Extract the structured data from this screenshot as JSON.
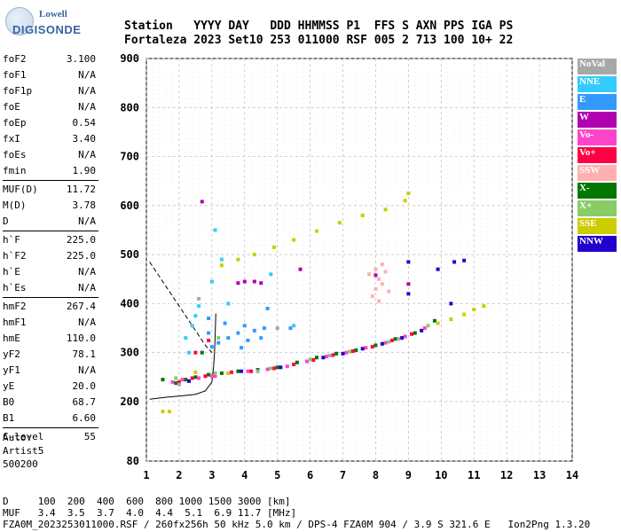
{
  "logo": {
    "line1": "Lowell",
    "line2": "DIGISONDE"
  },
  "header": {
    "line1": "Station   YYYY DAY   DDD HHMMSS P1  FFS S AXN PPS IGA PS",
    "line2": "Fortaleza 2023 Set10 253 011000 RSF 005 2 713 100 10+ 22"
  },
  "params_group1": [
    {
      "k": "foF2",
      "v": "3.100"
    },
    {
      "k": "foF1",
      "v": "N/A"
    },
    {
      "k": "foF1p",
      "v": "N/A"
    },
    {
      "k": "foE",
      "v": "N/A"
    },
    {
      "k": "foEp",
      "v": "0.54"
    },
    {
      "k": "fxI",
      "v": "3.40"
    },
    {
      "k": "foEs",
      "v": "N/A"
    },
    {
      "k": "fmin",
      "v": "1.90"
    }
  ],
  "params_group2": [
    {
      "k": "MUF(D)",
      "v": "11.72"
    },
    {
      "k": "M(D)",
      "v": "3.78"
    },
    {
      "k": "D",
      "v": "N/A"
    }
  ],
  "params_group3": [
    {
      "k": "h`F",
      "v": "225.0"
    },
    {
      "k": "h`F2",
      "v": "225.0"
    },
    {
      "k": "h`E",
      "v": "N/A"
    },
    {
      "k": "h`Es",
      "v": "N/A"
    }
  ],
  "params_group4": [
    {
      "k": "hmF2",
      "v": "267.4"
    },
    {
      "k": "hmF1",
      "v": "N/A"
    },
    {
      "k": "hmE",
      "v": "110.0"
    },
    {
      "k": "yF2",
      "v": "78.1"
    },
    {
      "k": "yF1",
      "v": "N/A"
    },
    {
      "k": "yE",
      "v": "20.0"
    },
    {
      "k": "B0",
      "v": "68.7"
    },
    {
      "k": "B1",
      "v": "6.60"
    }
  ],
  "params_group5": [
    {
      "k": "C-level",
      "v": "55"
    }
  ],
  "auto": {
    "l1": "Auto:",
    "l2": "Artist5",
    "l3": "500200"
  },
  "legend": [
    {
      "label": "NoVal",
      "color": "#a8a8a8"
    },
    {
      "label": "NNE",
      "color": "#33ccff"
    },
    {
      "label": "E",
      "color": "#3399ff"
    },
    {
      "label": "W",
      "color": "#b000b0"
    },
    {
      "label": "Vo-",
      "color": "#ff44cc"
    },
    {
      "label": "Vo+",
      "color": "#ff0044"
    },
    {
      "label": "SSW",
      "color": "#ffb0b0"
    },
    {
      "label": "X-",
      "color": "#007700"
    },
    {
      "label": "X+",
      "color": "#88cc66"
    },
    {
      "label": "SSE",
      "color": "#cccc00"
    },
    {
      "label": "NNW",
      "color": "#2200cc"
    }
  ],
  "footer": {
    "d_row": "D     100  200  400  600  800 1000 1500 3000 [km]",
    "muf_row": "MUF   3.4  3.5  3.7  4.0  4.4  5.1  6.9 11.7 [MHz]",
    "file_row": "FZA0M_2023253011000.RSF / 260fx256h 50 kHz 5.0 km / DPS-4 FZA0M 904 / 3.9 S 321.6 E   Ion2Png 1.3.20"
  },
  "chart_data": {
    "type": "scatter",
    "x_ticks": [
      1,
      2,
      3,
      4,
      5,
      6,
      7,
      8,
      9,
      10,
      11,
      12,
      13,
      14
    ],
    "y_ticks": [
      80,
      200,
      300,
      400,
      500,
      600,
      700,
      800,
      900
    ],
    "xlim": [
      1,
      14
    ],
    "ylim": [
      80,
      900
    ],
    "grid": true,
    "legend_position": "right",
    "series": [
      {
        "name": "X-",
        "color": "#007700",
        "points": [
          [
            1.9,
            238
          ],
          [
            2.2,
            245
          ],
          [
            2.5,
            250
          ],
          [
            2.9,
            255
          ],
          [
            3.3,
            258
          ],
          [
            3.8,
            262
          ],
          [
            4.4,
            265
          ],
          [
            5.0,
            270
          ],
          [
            5.6,
            280
          ],
          [
            6.2,
            290
          ],
          [
            6.8,
            298
          ],
          [
            7.4,
            305
          ],
          [
            8.0,
            315
          ],
          [
            8.6,
            328
          ],
          [
            9.2,
            340
          ],
          [
            9.8,
            365
          ],
          [
            1.5,
            245
          ],
          [
            2.7,
            300
          ]
        ]
      },
      {
        "name": "Vo-",
        "color": "#ff44cc",
        "points": [
          [
            1.8,
            240
          ],
          [
            2.1,
            245
          ],
          [
            2.6,
            248
          ],
          [
            3.0,
            252
          ],
          [
            3.5,
            258
          ],
          [
            4.1,
            262
          ],
          [
            4.7,
            266
          ],
          [
            5.3,
            272
          ],
          [
            5.9,
            282
          ],
          [
            6.5,
            292
          ],
          [
            7.1,
            300
          ],
          [
            7.7,
            310
          ],
          [
            8.3,
            320
          ],
          [
            8.9,
            333
          ],
          [
            9.5,
            350
          ],
          [
            3.1,
            252
          ]
        ]
      },
      {
        "name": "Vo+",
        "color": "#ff0044",
        "points": [
          [
            2.0,
            240
          ],
          [
            2.4,
            248
          ],
          [
            2.8,
            252
          ],
          [
            3.6,
            260
          ],
          [
            4.2,
            262
          ],
          [
            4.9,
            268
          ],
          [
            5.5,
            276
          ],
          [
            6.1,
            285
          ],
          [
            6.7,
            295
          ],
          [
            7.3,
            303
          ],
          [
            7.9,
            312
          ],
          [
            8.5,
            325
          ],
          [
            9.1,
            338
          ],
          [
            2.9,
            325
          ],
          [
            2.5,
            300
          ]
        ]
      },
      {
        "name": "NNW",
        "color": "#2200cc",
        "points": [
          [
            2.3,
            242
          ],
          [
            3.9,
            262
          ],
          [
            5.1,
            270
          ],
          [
            6.4,
            290
          ],
          [
            7.0,
            298
          ],
          [
            7.6,
            308
          ],
          [
            8.2,
            318
          ],
          [
            8.8,
            330
          ],
          [
            9.4,
            345
          ],
          [
            9.0,
            420
          ],
          [
            9.9,
            470
          ],
          [
            10.4,
            485
          ],
          [
            10.7,
            488
          ],
          [
            9.0,
            485
          ],
          [
            10.3,
            400
          ]
        ]
      },
      {
        "name": "SSE",
        "color": "#cccc00",
        "points": [
          [
            3.3,
            478
          ],
          [
            3.8,
            490
          ],
          [
            4.3,
            500
          ],
          [
            4.9,
            515
          ],
          [
            5.5,
            530
          ],
          [
            6.2,
            548
          ],
          [
            6.9,
            565
          ],
          [
            7.6,
            580
          ],
          [
            8.3,
            592
          ],
          [
            8.9,
            610
          ],
          [
            9.0,
            625
          ],
          [
            2.5,
            260
          ],
          [
            3.5,
            258
          ],
          [
            9.9,
            360
          ],
          [
            10.3,
            368
          ],
          [
            10.7,
            378
          ],
          [
            11.0,
            388
          ],
          [
            11.3,
            395
          ],
          [
            1.5,
            180
          ],
          [
            1.7,
            180
          ]
        ]
      },
      {
        "name": "E",
        "color": "#3399ff",
        "points": [
          [
            3.2,
            320
          ],
          [
            3.5,
            330
          ],
          [
            3.8,
            340
          ],
          [
            4.1,
            325
          ],
          [
            4.3,
            345
          ],
          [
            4.6,
            350
          ],
          [
            3.4,
            360
          ],
          [
            3.9,
            310
          ],
          [
            4.0,
            355
          ],
          [
            4.5,
            330
          ],
          [
            5.4,
            350
          ],
          [
            2.9,
            370
          ],
          [
            4.7,
            390
          ],
          [
            2.9,
            340
          ],
          [
            3.0,
            312
          ]
        ]
      },
      {
        "name": "NNE",
        "color": "#33ccff",
        "points": [
          [
            2.4,
            355
          ],
          [
            2.5,
            375
          ],
          [
            2.6,
            395
          ],
          [
            2.2,
            330
          ],
          [
            3.5,
            400
          ],
          [
            3.1,
            550
          ],
          [
            3.3,
            490
          ],
          [
            4.8,
            460
          ],
          [
            5.5,
            355
          ],
          [
            3.0,
            445
          ],
          [
            2.3,
            300
          ]
        ]
      },
      {
        "name": "SSW",
        "color": "#ffb0b0",
        "points": [
          [
            7.9,
            415
          ],
          [
            8.0,
            430
          ],
          [
            8.1,
            450
          ],
          [
            8.2,
            440
          ],
          [
            8.3,
            465
          ],
          [
            7.8,
            460
          ],
          [
            8.4,
            425
          ],
          [
            8.1,
            405
          ],
          [
            8.0,
            470
          ],
          [
            8.2,
            480
          ]
        ]
      },
      {
        "name": "W",
        "color": "#b000b0",
        "points": [
          [
            3.8,
            442
          ],
          [
            4.0,
            445
          ],
          [
            4.3,
            445
          ],
          [
            4.5,
            442
          ],
          [
            2.7,
            608
          ],
          [
            8.0,
            458
          ],
          [
            9.0,
            440
          ],
          [
            5.7,
            470
          ]
        ]
      },
      {
        "name": "X+",
        "color": "#88cc66",
        "points": [
          [
            1.9,
            248
          ],
          [
            3.1,
            258
          ],
          [
            4.8,
            268
          ],
          [
            6.0,
            286
          ],
          [
            7.2,
            302
          ],
          [
            8.4,
            322
          ],
          [
            9.6,
            355
          ],
          [
            3.2,
            330
          ]
        ]
      },
      {
        "name": "NoVal",
        "color": "#a8a8a8",
        "points": [
          [
            2.0,
            235
          ],
          [
            4.4,
            262
          ],
          [
            6.6,
            294
          ],
          [
            8.7,
            328
          ],
          [
            5.0,
            350
          ],
          [
            2.6,
            410
          ]
        ]
      }
    ],
    "profile": {
      "points": [
        [
          1.1,
          205
        ],
        [
          1.6,
          209
        ],
        [
          2.1,
          212
        ],
        [
          2.5,
          215
        ],
        [
          2.8,
          222
        ],
        [
          3.0,
          240
        ],
        [
          3.05,
          270
        ],
        [
          3.08,
          300
        ],
        [
          3.1,
          335
        ],
        [
          3.12,
          380
        ]
      ]
    },
    "muf_curve": {
      "points": [
        [
          1.1,
          485
        ],
        [
          1.4,
          455
        ],
        [
          1.7,
          425
        ],
        [
          2.0,
          395
        ],
        [
          2.3,
          365
        ],
        [
          2.6,
          335
        ],
        [
          2.8,
          315
        ],
        [
          3.0,
          300
        ]
      ]
    }
  }
}
